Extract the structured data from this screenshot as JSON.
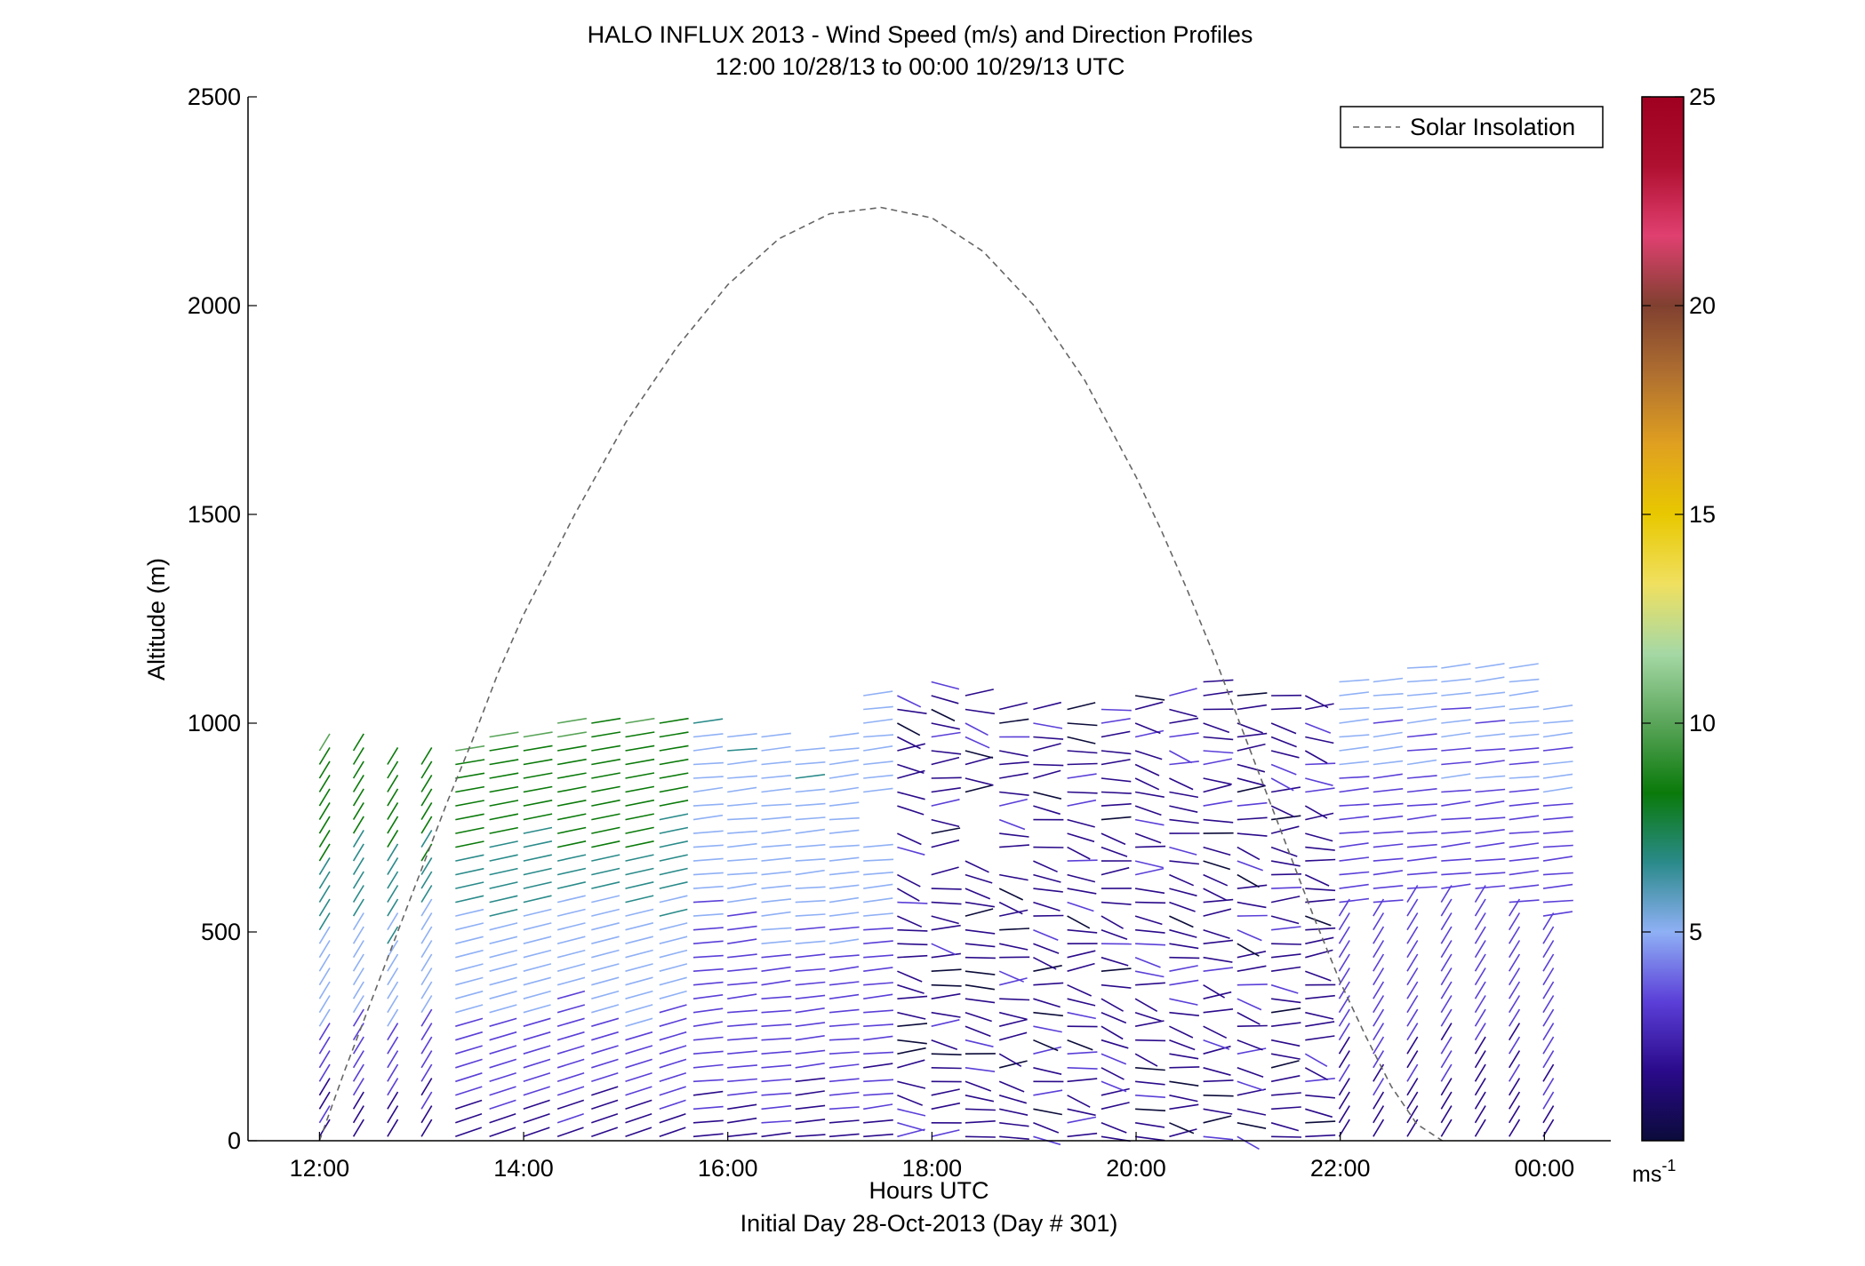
{
  "chart_data": {
    "type": "barbs",
    "title": "HALO INFLUX 2013 - Wind Speed (m/s) and Direction Profiles",
    "subtitle": "12:00 10/28/13 to 00:00 10/29/13  UTC",
    "xlabel": "Hours UTC",
    "xlabel2": "Initial Day 28-Oct-2013 (Day # 301)",
    "ylabel": "Altitude (m)",
    "xlim": [
      11.3,
      24.65
    ],
    "ylim": [
      0,
      2500
    ],
    "xticks": [
      12,
      14,
      16,
      18,
      20,
      22,
      24
    ],
    "xtick_labels": [
      "12:00",
      "14:00",
      "16:00",
      "18:00",
      "20:00",
      "22:00",
      "00:00"
    ],
    "yticks": [
      0,
      500,
      1000,
      1500,
      2000,
      2500
    ],
    "ytick_labels": [
      "0",
      "500",
      "1000",
      "1500",
      "2000",
      "2500"
    ],
    "legend": {
      "position": "top-right",
      "entries": [
        {
          "label": "Solar Insolation",
          "style": "dashed",
          "color": "#666666"
        }
      ]
    },
    "colorbar": {
      "range": [
        0,
        25
      ],
      "ticks": [
        5,
        10,
        15,
        20,
        25
      ],
      "tick_labels": [
        "5",
        "10",
        "15",
        "20",
        "25"
      ],
      "unit": "ms",
      "unit_exponent": "-1",
      "colors": [
        "#0b0b3a",
        "#2a0a8a",
        "#5b3fd8",
        "#8fb0f5",
        "#2a8a8a",
        "#0a7a0a",
        "#5aa55a",
        "#a5d8a5",
        "#f0e060",
        "#e8c800",
        "#e0a020",
        "#b07030",
        "#804030",
        "#e04070",
        "#b01030",
        "#a00020"
      ]
    },
    "solar_insolation": {
      "x": [
        12.0,
        12.25,
        12.5,
        12.75,
        13.0,
        13.25,
        13.5,
        13.75,
        14.0,
        14.5,
        15.0,
        15.5,
        16.0,
        16.5,
        17.0,
        17.5,
        18.0,
        18.5,
        19.0,
        19.5,
        20.0,
        20.25,
        20.5,
        20.75,
        21.0,
        21.25,
        21.5,
        21.75,
        22.0,
        22.25,
        22.5,
        22.75,
        23.0
      ],
      "y": [
        0,
        170,
        330,
        490,
        650,
        810,
        960,
        1120,
        1260,
        1500,
        1720,
        1900,
        2050,
        2160,
        2220,
        2235,
        2210,
        2130,
        2000,
        1820,
        1590,
        1460,
        1320,
        1170,
        1010,
        850,
        690,
        530,
        380,
        250,
        130,
        40,
        0
      ]
    },
    "wind_profiles": {
      "x_start": 12.0,
      "x_step": 0.333,
      "n_columns": 37,
      "altitude_step_m": 33,
      "note_top_m": [
        950,
        960,
        920,
        930,
        950,
        970,
        990,
        1000,
        1010,
        1010,
        1000,
        1000,
        990,
        980,
        960,
        980,
        1090,
        1090,
        1110,
        1080,
        1060,
        1050,
        1040,
        1050,
        1070,
        1080,
        1100,
        1090,
        1090,
        1080,
        1120,
        1130,
        1150,
        1160,
        1150,
        1140,
        1040
      ]
    }
  }
}
